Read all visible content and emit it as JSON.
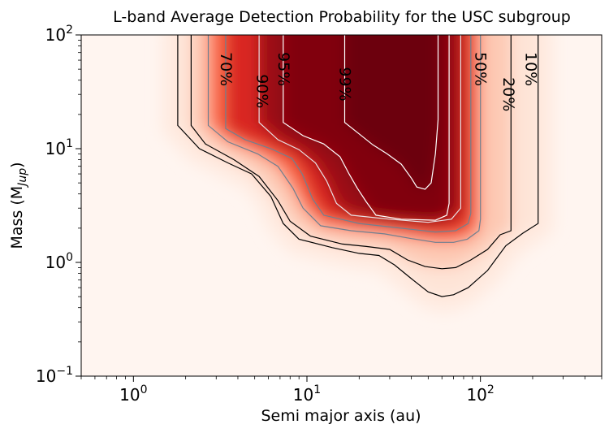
{
  "chart_data": {
    "type": "heatmap",
    "title": "L-band Average Detection Probability for the USC subgroup",
    "xlabel": "Semi major axis (au)",
    "ylabel": "Mass (M",
    "ylabel_sub": "Jup",
    "ylabel_close": ")",
    "xscale": "log",
    "yscale": "log",
    "xlim": [
      0.5,
      500
    ],
    "ylim": [
      0.1,
      100
    ],
    "colormap": "Reds",
    "x_ticks": [
      {
        "value": 1,
        "base": "10",
        "exp": "0"
      },
      {
        "value": 10,
        "base": "10",
        "exp": "1"
      },
      {
        "value": 100,
        "base": "10",
        "exp": "2"
      }
    ],
    "y_ticks": [
      {
        "value": 0.1,
        "base": "10",
        "exp": "−1"
      },
      {
        "value": 1,
        "base": "10",
        "exp": "0"
      },
      {
        "value": 10,
        "base": "10",
        "exp": "1"
      },
      {
        "value": 100,
        "base": "10",
        "exp": "2"
      }
    ],
    "contours": [
      {
        "level": 0.1,
        "label": "10%",
        "color": "#000000",
        "label_color": "#000000",
        "label_at": [
          195,
          50
        ],
        "label_size": 1.0,
        "points": [
          [
            1.8,
            100
          ],
          [
            1.8,
            16
          ],
          [
            2.4,
            10
          ],
          [
            3.5,
            7.5
          ],
          [
            4.8,
            6
          ],
          [
            6.2,
            3.8
          ],
          [
            7.3,
            2.2
          ],
          [
            9,
            1.6
          ],
          [
            14,
            1.35
          ],
          [
            20,
            1.2
          ],
          [
            26,
            1.15
          ],
          [
            32,
            0.95
          ],
          [
            40,
            0.72
          ],
          [
            50,
            0.55
          ],
          [
            60,
            0.5
          ],
          [
            70,
            0.52
          ],
          [
            85,
            0.6
          ],
          [
            110,
            0.85
          ],
          [
            140,
            1.4
          ],
          [
            175,
            1.8
          ],
          [
            215,
            2.2
          ],
          [
            215,
            100
          ]
        ]
      },
      {
        "level": 0.2,
        "label": "20%",
        "color": "#000000",
        "label_color": "#000000",
        "label_at": [
          145,
          30
        ],
        "label_size": 1.0,
        "points": [
          [
            2.15,
            100
          ],
          [
            2.15,
            16
          ],
          [
            2.6,
            11
          ],
          [
            3.8,
            8
          ],
          [
            5.3,
            5.7
          ],
          [
            6.8,
            3.5
          ],
          [
            8,
            2.3
          ],
          [
            10.5,
            1.7
          ],
          [
            16,
            1.45
          ],
          [
            22,
            1.38
          ],
          [
            30,
            1.3
          ],
          [
            38,
            1.05
          ],
          [
            48,
            0.92
          ],
          [
            60,
            0.88
          ],
          [
            72,
            0.9
          ],
          [
            88,
            1.05
          ],
          [
            110,
            1.3
          ],
          [
            130,
            1.75
          ],
          [
            150,
            1.9
          ],
          [
            150,
            100
          ]
        ]
      },
      {
        "level": 0.5,
        "label": "50%",
        "color": "#708090",
        "label_color": "#708090",
        "label_at": [
          100,
          50
        ],
        "label_size": 1.0,
        "points": [
          [
            2.7,
            100
          ],
          [
            2.7,
            16
          ],
          [
            3.5,
            11.5
          ],
          [
            5.2,
            9
          ],
          [
            6.8,
            7
          ],
          [
            8.3,
            4.5
          ],
          [
            9.5,
            3
          ],
          [
            12,
            2.1
          ],
          [
            18,
            1.9
          ],
          [
            28,
            1.78
          ],
          [
            40,
            1.62
          ],
          [
            55,
            1.5
          ],
          [
            70,
            1.5
          ],
          [
            84,
            1.6
          ],
          [
            98,
            1.9
          ],
          [
            100,
            2.4
          ],
          [
            100,
            100
          ]
        ]
      },
      {
        "level": 0.7,
        "label": "70%",
        "color": "#708090",
        "label_color": "#708090",
        "label_at": [
          3.4,
          50
        ],
        "label_size": 1.0,
        "points": [
          [
            3.4,
            100
          ],
          [
            3.4,
            15
          ],
          [
            4.4,
            12
          ],
          [
            6.2,
            10
          ],
          [
            8.2,
            8.2
          ],
          [
            9.4,
            6
          ],
          [
            10.8,
            3.6
          ],
          [
            12.5,
            2.6
          ],
          [
            20,
            2.2
          ],
          [
            35,
            2.0
          ],
          [
            55,
            1.85
          ],
          [
            72,
            1.9
          ],
          [
            85,
            2.2
          ],
          [
            88,
            2.7
          ],
          [
            88,
            100
          ]
        ]
      },
      {
        "level": 0.9,
        "label": "90%",
        "color": "#e8e0e4",
        "label_color": "#ffffff",
        "label_at": [
          5.5,
          32
        ],
        "label_size": 1.0,
        "points": [
          [
            5.3,
            100
          ],
          [
            5.3,
            17
          ],
          [
            6.8,
            12
          ],
          [
            9,
            9.8
          ],
          [
            11.2,
            7.5
          ],
          [
            13,
            5.2
          ],
          [
            14.8,
            3.3
          ],
          [
            18,
            2.6
          ],
          [
            30,
            2.4
          ],
          [
            50,
            2.25
          ],
          [
            68,
            2.4
          ],
          [
            77,
            3
          ],
          [
            77,
            100
          ]
        ]
      },
      {
        "level": 0.95,
        "label": "95%",
        "color": "#ffffff",
        "label_color": "#ffffff",
        "label_at": [
          7.3,
          50
        ],
        "label_size": 1.0,
        "points": [
          [
            7.3,
            100
          ],
          [
            7.3,
            17
          ],
          [
            9.5,
            13
          ],
          [
            12.5,
            11
          ],
          [
            15.5,
            8.5
          ],
          [
            17.5,
            6
          ],
          [
            19.5,
            4.5
          ],
          [
            22,
            3.4
          ],
          [
            25,
            2.6
          ],
          [
            35,
            2.4
          ],
          [
            55,
            2.35
          ],
          [
            64,
            2.6
          ],
          [
            66,
            3.3
          ],
          [
            66,
            100
          ]
        ]
      },
      {
        "level": 0.99,
        "label": "99%",
        "color": "#ffffff",
        "label_color": "#ffffff",
        "label_at": [
          16.5,
          37
        ],
        "label_size": 1.0,
        "points": [
          [
            16.5,
            100
          ],
          [
            16.5,
            17
          ],
          [
            20,
            13.5
          ],
          [
            24,
            10.8
          ],
          [
            29,
            9
          ],
          [
            35,
            7.3
          ],
          [
            40,
            5.5
          ],
          [
            43,
            4.6
          ],
          [
            48,
            4.4
          ],
          [
            52,
            5
          ],
          [
            55,
            9
          ],
          [
            57,
            18
          ],
          [
            57,
            100
          ]
        ]
      }
    ]
  }
}
